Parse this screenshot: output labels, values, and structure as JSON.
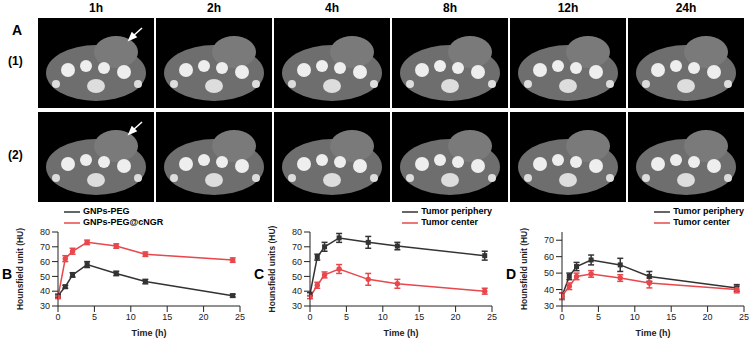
{
  "panel_a": {
    "label": "A",
    "columns": [
      "1h",
      "2h",
      "4h",
      "8h",
      "12h",
      "24h"
    ],
    "rows": [
      "(1)",
      "(2)"
    ]
  },
  "chart_data": [
    {
      "panel": "B",
      "type": "line",
      "x_label": "Time (h)",
      "y_label": "Hounsfield unit (HU)",
      "x": [
        0,
        1,
        2,
        4,
        8,
        12,
        24
      ],
      "xlim": [
        0,
        25
      ],
      "xticks": [
        0,
        5,
        10,
        15,
        20,
        25
      ],
      "ylim": [
        30,
        80
      ],
      "yticks": [
        30,
        40,
        50,
        60,
        70,
        80
      ],
      "legend": "upper left",
      "series": [
        {
          "name": "GNPs-PEG",
          "color": "#333333",
          "marker": "square",
          "values": [
            37,
            43,
            51,
            58,
            52,
            46.5,
            37
          ],
          "errors": [
            1,
            1,
            1.5,
            2,
            1.5,
            1.5,
            1
          ]
        },
        {
          "name": "GNPs-PEG@cNGR",
          "color": "#e8474b",
          "marker": "circle",
          "values": [
            36,
            62,
            67,
            73,
            70.5,
            65,
            61
          ],
          "errors": [
            1,
            2,
            2,
            1.5,
            1.5,
            1.5,
            1.5
          ]
        }
      ]
    },
    {
      "panel": "C",
      "type": "line",
      "x_label": "Time (h)",
      "y_label": "Hounsfield units (HU)",
      "x": [
        0,
        1,
        2,
        4,
        8,
        12,
        24
      ],
      "xlim": [
        0,
        25
      ],
      "xticks": [
        0,
        5,
        10,
        15,
        20,
        25
      ],
      "ylim": [
        30,
        80
      ],
      "yticks": [
        30,
        40,
        50,
        60,
        70,
        80
      ],
      "legend": "upper right",
      "series": [
        {
          "name": "Tumor periphery",
          "color": "#333333",
          "marker": "square",
          "values": [
            38,
            63,
            70,
            76,
            73,
            70.5,
            64
          ],
          "errors": [
            1,
            2,
            3,
            3,
            4,
            2.5,
            3
          ]
        },
        {
          "name": "Tumor center",
          "color": "#e8474b",
          "marker": "circle",
          "values": [
            36,
            44,
            51,
            55,
            48,
            45,
            40
          ],
          "errors": [
            1,
            2,
            2,
            3,
            4,
            3,
            2
          ]
        }
      ]
    },
    {
      "panel": "D",
      "type": "line",
      "x_label": "Time (h)",
      "y_label": "Hounsfield unit (HU)",
      "x": [
        0,
        1,
        2,
        4,
        8,
        12,
        24
      ],
      "xlim": [
        0,
        25
      ],
      "xticks": [
        0,
        5,
        10,
        15,
        20,
        25
      ],
      "ylim": [
        30,
        75
      ],
      "yticks": [
        30,
        40,
        50,
        60,
        70
      ],
      "legend": "upper right",
      "series": [
        {
          "name": "Tumor periphery",
          "color": "#333333",
          "marker": "square",
          "values": [
            36,
            48,
            54,
            58,
            55,
            48,
            41
          ],
          "errors": [
            2,
            2,
            2.5,
            3,
            4,
            3,
            2
          ]
        },
        {
          "name": "Tumor center",
          "color": "#e8474b",
          "marker": "circle",
          "values": [
            36,
            42,
            48,
            49.5,
            47,
            44,
            40
          ],
          "errors": [
            2,
            2,
            2,
            2,
            2,
            3,
            2
          ]
        }
      ]
    }
  ]
}
